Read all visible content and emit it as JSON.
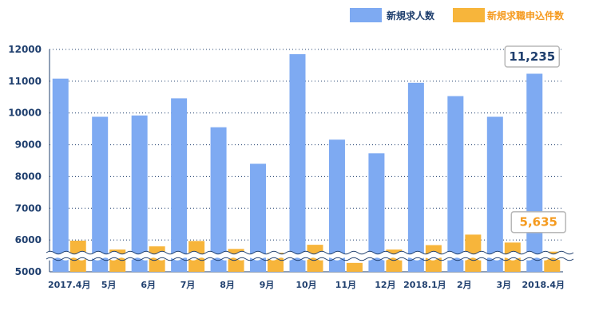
{
  "chart_data": {
    "type": "bar",
    "categories": [
      "2017.4月",
      "5月",
      "6月",
      "7月",
      "8月",
      "9月",
      "10月",
      "11月",
      "12月",
      "2018.1月",
      "2月",
      "3月",
      "2018.4月"
    ],
    "series": [
      {
        "name": "新規求人数",
        "color": "#7eaaf2",
        "values": [
          11080,
          9880,
          9920,
          10460,
          9550,
          8400,
          11850,
          9160,
          8730,
          10950,
          10530,
          9880,
          11235
        ]
      },
      {
        "name": "新規求職申込件数",
        "color": "#f7b53b",
        "values": [
          5980,
          5700,
          5800,
          5970,
          5720,
          5600,
          5850,
          5280,
          5700,
          5840,
          6170,
          5920,
          5635
        ]
      }
    ],
    "yticks": [
      "5000",
      "6000",
      "7000",
      "8000",
      "9000",
      "10000",
      "11000",
      "12000"
    ],
    "ylim": [
      5000,
      12000
    ],
    "axis_break": true,
    "grid": "dotted",
    "legend_position": "top-right",
    "callouts": [
      {
        "series": 0,
        "index": 12,
        "label": "11,235",
        "color": "#1f3f6e"
      },
      {
        "series": 1,
        "index": 12,
        "label": "5,635",
        "color": "#f59a1e"
      }
    ]
  }
}
